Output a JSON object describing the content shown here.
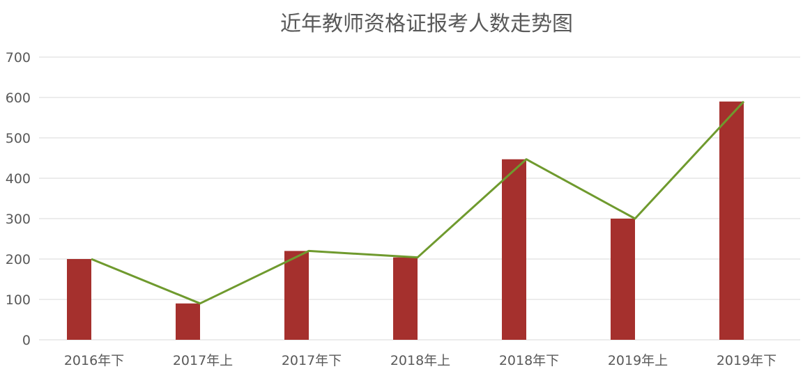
{
  "chart_data": {
    "type": "bar",
    "title": "近年教师资格证报考人数走势图",
    "categories": [
      "2016年下",
      "2017年上",
      "2017年下",
      "2018年上",
      "2018年下",
      "2019年上",
      "2019年下"
    ],
    "series": [
      {
        "kind": "bar",
        "values": [
          200,
          90,
          220,
          204,
          447,
          300,
          590
        ],
        "color": "#a5302d"
      },
      {
        "kind": "line",
        "values": [
          200,
          90,
          220,
          204,
          447,
          300,
          590
        ],
        "color": "#6f9a2e"
      }
    ],
    "ylim": [
      0,
      700
    ],
    "yticks": [
      0,
      100,
      200,
      300,
      400,
      500,
      600,
      700
    ],
    "grid": true,
    "legend": "none"
  }
}
